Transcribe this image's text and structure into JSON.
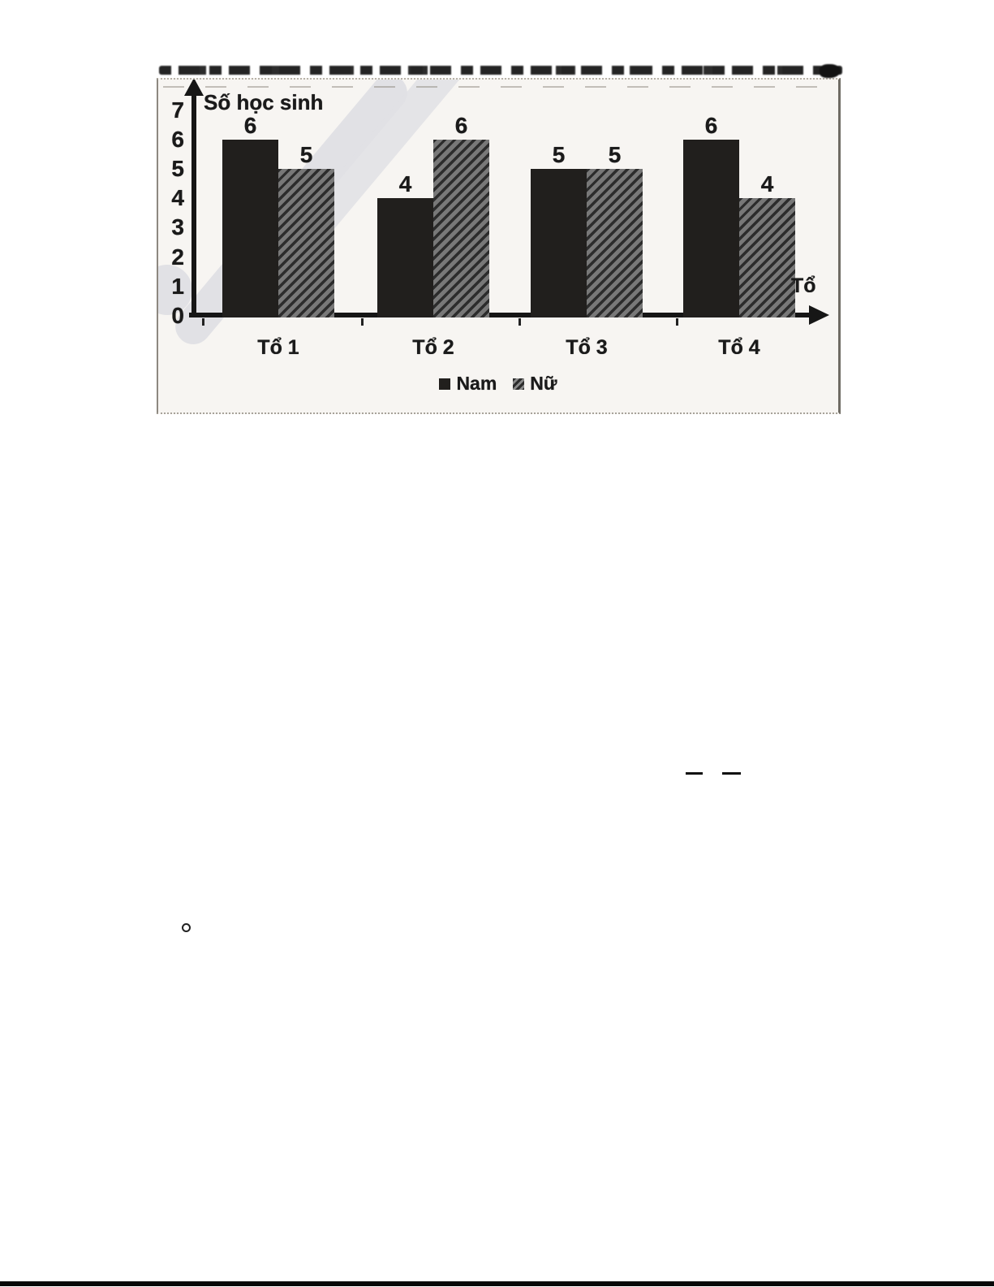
{
  "page": {
    "background": "#ffffff",
    "bottom_rule_color": "#070707"
  },
  "chart_data": {
    "type": "bar",
    "title": "",
    "y_axis_title": "Số học sinh",
    "xlabel": "Tổ",
    "categories": [
      "Tổ 1",
      "Tổ 2",
      "Tổ 3",
      "Tổ 4"
    ],
    "series": [
      {
        "name": "Nam",
        "values": [
          6,
          4,
          5,
          6
        ],
        "style": "solid",
        "color": "#211f1d"
      },
      {
        "name": "Nữ",
        "values": [
          5,
          6,
          5,
          4
        ],
        "style": "hatched",
        "color": "#787878",
        "stripe_color": "#2c2c2c"
      }
    ],
    "ylim": [
      0,
      7
    ],
    "yticks": [
      0,
      1,
      2,
      3,
      4,
      5,
      6,
      7
    ],
    "bar_value_labels_shown": true,
    "grid": false,
    "legend_position": "bottom-center"
  },
  "colors": {
    "axis_ink": "#161616",
    "text_ink": "#1a1a1a",
    "panel_background": "#f7f5f2",
    "panel_border": "#8d8880",
    "watermark": "#e1e1e5"
  }
}
